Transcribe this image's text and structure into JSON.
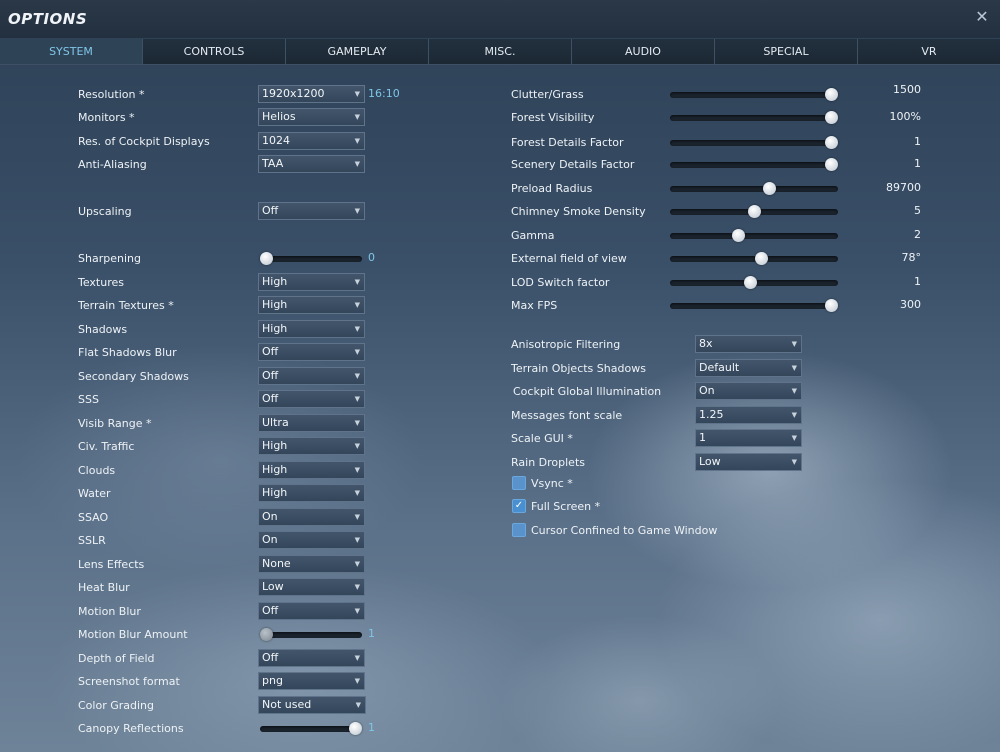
{
  "window": {
    "title": "OPTIONS",
    "close_glyph": "✕"
  },
  "tabs": [
    "SYSTEM",
    "CONTROLS",
    "GAMEPLAY",
    "MISC.",
    "AUDIO",
    "SPECIAL",
    "VR"
  ],
  "left": {
    "resolution": {
      "label": "Resolution *",
      "value": "1920x1200",
      "aspect": "16:10"
    },
    "monitors": {
      "label": "Monitors *",
      "value": "Helios"
    },
    "cockpit_res": {
      "label": "Res. of Cockpit Displays",
      "value": "1024"
    },
    "anti_aliasing": {
      "label": "Anti-Aliasing",
      "value": "TAA"
    },
    "upscaling": {
      "label": "Upscaling",
      "value": "Off"
    },
    "sharpening": {
      "label": "Sharpening",
      "value": "0",
      "level": 0.0
    },
    "textures": {
      "label": "Textures",
      "value": "High"
    },
    "terrain_textures": {
      "label": "Terrain Textures *",
      "value": "High"
    },
    "shadows": {
      "label": "Shadows",
      "value": "High"
    },
    "flat_shadows_blur": {
      "label": "Flat Shadows Blur",
      "value": "Off"
    },
    "secondary_shadows": {
      "label": "Secondary Shadows",
      "value": "Off"
    },
    "sss": {
      "label": "SSS",
      "value": "Off"
    },
    "visib_range": {
      "label": "Visib Range *",
      "value": "Ultra"
    },
    "civ_traffic": {
      "label": "Civ. Traffic",
      "value": "High"
    },
    "clouds": {
      "label": "Clouds",
      "value": "High"
    },
    "water": {
      "label": "Water",
      "value": "High"
    },
    "ssao": {
      "label": "SSAO",
      "value": "On"
    },
    "sslr": {
      "label": "SSLR",
      "value": "On"
    },
    "lens_effects": {
      "label": "Lens Effects",
      "value": "None"
    },
    "heat_blur": {
      "label": "Heat Blur",
      "value": "Low"
    },
    "motion_blur": {
      "label": "Motion Blur",
      "value": "Off"
    },
    "motion_blur_amount": {
      "label": "Motion Blur Amount",
      "value": "1",
      "level": 0.0
    },
    "depth_of_field": {
      "label": "Depth of Field",
      "value": "Off"
    },
    "screenshot_format": {
      "label": "Screenshot format",
      "value": "png"
    },
    "color_grading": {
      "label": "Color Grading",
      "value": "Not used"
    },
    "canopy_reflections": {
      "label": "Canopy Reflections",
      "value": "1",
      "level": 1.0
    }
  },
  "right": {
    "clutter_grass": {
      "label": "Clutter/Grass",
      "value": "1500",
      "level": 1.0
    },
    "forest_visibility": {
      "label": "Forest Visibility",
      "value": "100%",
      "level": 1.0
    },
    "forest_details": {
      "label": "Forest Details Factor",
      "value": "1",
      "level": 1.0
    },
    "scenery_details": {
      "label": "Scenery Details Factor",
      "value": "1",
      "level": 1.0
    },
    "preload_radius": {
      "label": "Preload Radius",
      "value": "89700",
      "level": 0.6
    },
    "chimney_smoke": {
      "label": "Chimney Smoke Density",
      "value": "5",
      "level": 0.5
    },
    "gamma": {
      "label": "Gamma",
      "value": "2",
      "level": 0.4
    },
    "fov": {
      "label": "External field of view",
      "value": "78°",
      "level": 0.55
    },
    "lod_switch": {
      "label": "LOD Switch factor",
      "value": "1",
      "level": 0.48
    },
    "max_fps": {
      "label": "Max FPS",
      "value": "300",
      "level": 1.0
    },
    "anisotropic": {
      "label": "Anisotropic Filtering",
      "value": "8x"
    },
    "terrain_objects_shadows": {
      "label": "Terrain Objects Shadows",
      "value": "Default"
    },
    "cockpit_gi": {
      "label": "Cockpit Global Illumination",
      "value": "On"
    },
    "messages_font_scale": {
      "label": "Messages font scale",
      "value": "1.25"
    },
    "scale_gui": {
      "label": "Scale GUI *",
      "value": "1"
    },
    "rain_droplets": {
      "label": "Rain Droplets",
      "value": "Low"
    },
    "vsync": {
      "label": "Vsync *",
      "checked": false
    },
    "full_screen": {
      "label": "Full Screen *",
      "checked": true
    },
    "cursor_confined": {
      "label": "Cursor Confined to Game Window",
      "checked": false
    }
  },
  "icons": {
    "dropdown_caret": "caret-down-icon",
    "check": "checkmark-icon"
  }
}
